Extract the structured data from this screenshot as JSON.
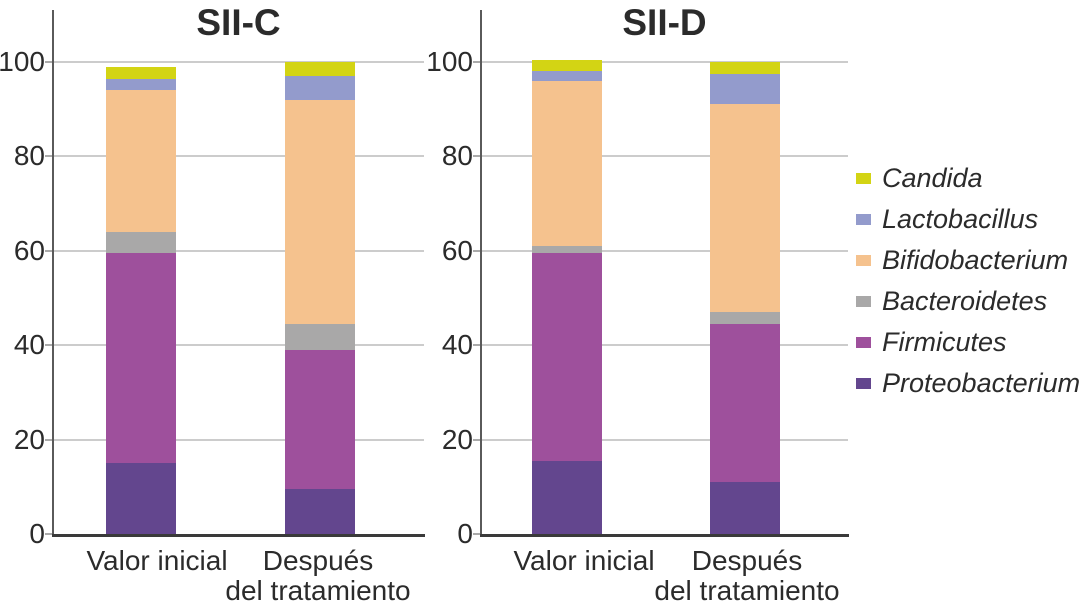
{
  "figure": {
    "background": "#ffffff",
    "text_color": "#2b2b2b",
    "axis_color": "#5a5a5a",
    "gridline_color": "#cccccc"
  },
  "legend": {
    "position": "right",
    "items": [
      {
        "label": "Candida",
        "color": "#d3d414"
      },
      {
        "label": "Lactobacillus",
        "color": "#939bcc"
      },
      {
        "label": "Bifidobacterium",
        "color": "#f5c28e"
      },
      {
        "label": "Bacteroidetes",
        "color": "#a9a8a8"
      },
      {
        "label": "Firmicutes",
        "color": "#9e509c"
      },
      {
        "label": "Proteobacterium",
        "color": "#63468e"
      }
    ]
  },
  "chart_data": [
    {
      "type": "bar",
      "subtype": "stacked",
      "title": "SII-C",
      "categories": [
        "Valor inicial",
        "Después\ndel tratamiento"
      ],
      "ylim": [
        0,
        100
      ],
      "yticks": [
        0,
        20,
        40,
        60,
        80,
        100
      ],
      "grid": true,
      "series": [
        {
          "name": "Proteobacterium",
          "color": "#63468e",
          "values": [
            15,
            9.5
          ]
        },
        {
          "name": "Firmicutes",
          "color": "#9e509c",
          "values": [
            44.5,
            29.5
          ]
        },
        {
          "name": "Bacteroidetes",
          "color": "#a9a8a8",
          "values": [
            4.5,
            5.5
          ]
        },
        {
          "name": "Bifidobacterium",
          "color": "#f5c28e",
          "values": [
            30,
            47.5
          ]
        },
        {
          "name": "Lactobacillus",
          "color": "#939bcc",
          "values": [
            2.5,
            5
          ]
        },
        {
          "name": "Candida",
          "color": "#d3d414",
          "values": [
            2.5,
            3
          ]
        }
      ],
      "bar_totals": [
        99,
        100
      ]
    },
    {
      "type": "bar",
      "subtype": "stacked",
      "title": "SII-D",
      "categories": [
        "Valor inicial",
        "Después\ndel tratamiento"
      ],
      "ylim": [
        0,
        100
      ],
      "yticks": [
        0,
        20,
        40,
        60,
        80,
        100
      ],
      "grid": true,
      "series": [
        {
          "name": "Proteobacterium",
          "color": "#63468e",
          "values": [
            15.5,
            11
          ]
        },
        {
          "name": "Firmicutes",
          "color": "#9e509c",
          "values": [
            44,
            33.5
          ]
        },
        {
          "name": "Bacteroidetes",
          "color": "#a9a8a8",
          "values": [
            1.5,
            2.5
          ]
        },
        {
          "name": "Bifidobacterium",
          "color": "#f5c28e",
          "values": [
            35,
            44
          ]
        },
        {
          "name": "Lactobacillus",
          "color": "#939bcc",
          "values": [
            2,
            6.5
          ]
        },
        {
          "name": "Candida",
          "color": "#d3d414",
          "values": [
            2.5,
            2.5
          ]
        }
      ],
      "bar_totals": [
        100.5,
        100
      ]
    }
  ]
}
